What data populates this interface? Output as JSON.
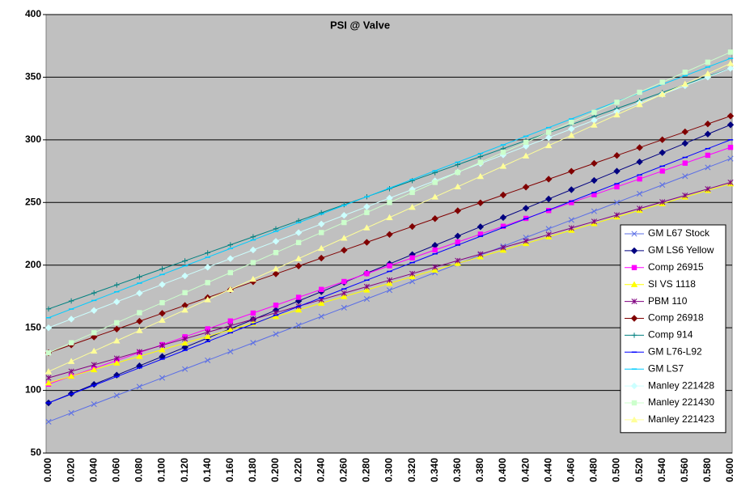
{
  "chart_data": {
    "type": "line",
    "title": "PSI @ Valve",
    "categories": [
      "0.000",
      "0.020",
      "0.040",
      "0.060",
      "0.080",
      "0.100",
      "0.120",
      "0.140",
      "0.160",
      "0.180",
      "0.200",
      "0.220",
      "0.240",
      "0.260",
      "0.280",
      "0.300",
      "0.320",
      "0.340",
      "0.360",
      "0.380",
      "0.400",
      "0.420",
      "0.440",
      "0.460",
      "0.480",
      "0.500",
      "0.520",
      "0.540",
      "0.560",
      "0.580",
      "0.600"
    ],
    "ylim": [
      50,
      400
    ],
    "yticks": [
      50,
      100,
      150,
      200,
      250,
      300,
      350,
      400
    ],
    "grid": true,
    "legend": "right",
    "series": [
      {
        "name": "GM L67 Stock",
        "color": "#5a6ee6",
        "marker": "x",
        "values": [
          75,
          82,
          89,
          96,
          103,
          110,
          117,
          124,
          131,
          138,
          145,
          152,
          159,
          166,
          173,
          180,
          187,
          194,
          201,
          208,
          215,
          222,
          229,
          236,
          243,
          250,
          257,
          264,
          271,
          278,
          285
        ]
      },
      {
        "name": "GM LS6 Yellow",
        "color": "#000080",
        "marker": "diamond",
        "values": [
          90,
          97.4,
          104.8,
          112.2,
          119.6,
          127,
          134.4,
          141.8,
          149.2,
          156.6,
          164,
          171.4,
          178.8,
          186.2,
          193.6,
          201,
          208.4,
          215.8,
          223.2,
          230.6,
          238,
          245.4,
          252.8,
          260.2,
          267.6,
          275,
          282.4,
          289.8,
          297.2,
          304.6,
          312
        ]
      },
      {
        "name": "Comp 26915",
        "color": "#ff00ff",
        "marker": "square",
        "values": [
          105,
          111.3,
          117.6,
          123.9,
          130.2,
          136.5,
          142.8,
          149.1,
          155.4,
          161.7,
          168,
          174.3,
          180.6,
          186.9,
          193.2,
          199.5,
          205.8,
          212.1,
          218.4,
          224.7,
          231,
          237.3,
          243.6,
          249.9,
          256.2,
          262.5,
          268.8,
          275.1,
          281.4,
          287.7,
          294
        ]
      },
      {
        "name": "SI VS 1118",
        "color": "#ffff00",
        "marker": "triangle",
        "values": [
          106,
          111.3,
          116.6,
          121.9,
          127.2,
          132.5,
          137.8,
          143.1,
          148.4,
          153.7,
          159,
          164.3,
          169.6,
          174.9,
          180.2,
          185.5,
          190.8,
          196.1,
          201.4,
          206.7,
          212,
          217.3,
          222.6,
          227.9,
          233.2,
          238.5,
          243.8,
          249.1,
          254.4,
          259.7,
          265
        ]
      },
      {
        "name": "PBM 110",
        "color": "#800080",
        "marker": "star",
        "values": [
          110,
          115.2,
          120.4,
          125.6,
          130.8,
          136,
          141.2,
          146.4,
          151.6,
          156.8,
          162,
          167.2,
          172.4,
          177.6,
          182.8,
          188,
          193.2,
          198.4,
          203.6,
          208.8,
          214,
          219.2,
          224.4,
          229.6,
          234.8,
          240,
          245.2,
          250.4,
          255.6,
          260.8,
          266
        ]
      },
      {
        "name": "Comp 26918",
        "color": "#800000",
        "marker": "diamond",
        "values": [
          130,
          136.3,
          142.6,
          148.9,
          155.2,
          161.5,
          167.8,
          174.1,
          180.4,
          186.7,
          193,
          199.3,
          205.6,
          211.9,
          218.2,
          224.5,
          230.8,
          237.1,
          243.4,
          249.7,
          256,
          262.3,
          268.6,
          274.9,
          281.2,
          287.5,
          293.8,
          300.1,
          306.4,
          312.7,
          319
        ]
      },
      {
        "name": "Comp 914",
        "color": "#008080",
        "marker": "plus",
        "values": [
          165,
          171.4,
          177.8,
          184.2,
          190.6,
          197,
          203.4,
          209.8,
          216.2,
          222.6,
          229,
          235.4,
          241.8,
          248.2,
          254.6,
          261,
          267.4,
          273.8,
          280.2,
          286.6,
          293,
          299.4,
          305.8,
          312.2,
          318.6,
          325,
          331.4,
          337.8,
          344.2,
          350.6,
          357
        ]
      },
      {
        "name": "GM L76-L92",
        "color": "#0000ff",
        "marker": "dash",
        "values": [
          90,
          97,
          104,
          111,
          118,
          125,
          132,
          139,
          146,
          153,
          160,
          167,
          174,
          181,
          188,
          195,
          202,
          209,
          216,
          223,
          230,
          237,
          244,
          251,
          258,
          265,
          272,
          279,
          286,
          293,
          300
        ]
      },
      {
        "name": "GM LS7",
        "color": "#00ccff",
        "marker": "dash",
        "values": [
          158,
          164.9,
          171.8,
          178.7,
          185.6,
          192.5,
          199.4,
          206.3,
          213.2,
          220.1,
          227,
          233.9,
          240.8,
          247.7,
          254.6,
          261.5,
          268.4,
          275.3,
          282.2,
          289.1,
          296,
          302.9,
          309.8,
          316.7,
          323.6,
          330.5,
          337.4,
          344.3,
          351.2,
          358.1,
          365
        ]
      },
      {
        "name": "Manley 221428",
        "color": "#ccffff",
        "marker": "diamond",
        "values": [
          150,
          156.9,
          163.8,
          170.7,
          177.6,
          184.5,
          191.4,
          198.3,
          205.2,
          212.1,
          219,
          225.9,
          232.8,
          239.7,
          246.6,
          253.5,
          260.4,
          267.3,
          274.2,
          281.1,
          288,
          294.9,
          301.8,
          308.7,
          315.6,
          322.5,
          329.4,
          336.3,
          343.2,
          350.1,
          357
        ]
      },
      {
        "name": "Manley 221430",
        "color": "#ccffcc",
        "marker": "square",
        "values": [
          130,
          138,
          146,
          154,
          162,
          170,
          178,
          186,
          194,
          202,
          210,
          218,
          226,
          234,
          242,
          250,
          258,
          266,
          274,
          282,
          290,
          298,
          306,
          314,
          322,
          330,
          338,
          346,
          354,
          362,
          370
        ]
      },
      {
        "name": "Manley 221423",
        "color": "#ffff99",
        "marker": "triangle",
        "values": [
          115,
          123.2,
          131.4,
          139.6,
          147.8,
          156,
          164.2,
          172.4,
          180.6,
          188.8,
          197,
          205.2,
          213.4,
          221.6,
          229.8,
          238,
          246.2,
          254.4,
          262.6,
          270.8,
          279,
          287.2,
          295.4,
          303.6,
          311.8,
          320,
          328.2,
          336.4,
          344.6,
          352.8,
          361
        ]
      }
    ]
  }
}
